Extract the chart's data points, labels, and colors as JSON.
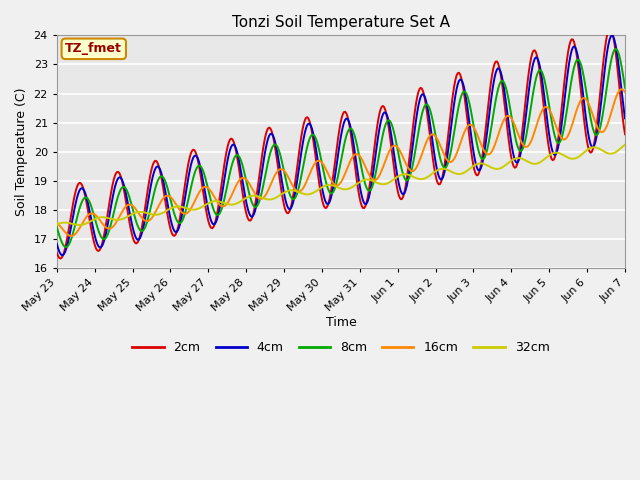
{
  "title": "Tonzi Soil Temperature Set A",
  "xlabel": "Time",
  "ylabel": "Soil Temperature (C)",
  "ylim": [
    16.0,
    24.0
  ],
  "yticks": [
    16.0,
    17.0,
    18.0,
    19.0,
    20.0,
    21.0,
    22.0,
    23.0,
    24.0
  ],
  "xtick_labels": [
    "May 23",
    "May 24",
    "May 25",
    "May 26",
    "May 27",
    "May 28",
    "May 29",
    "May 30",
    "May 31",
    "Jun 1",
    "Jun 2",
    "Jun 3",
    "Jun 4",
    "Jun 5",
    "Jun 6",
    "Jun 7"
  ],
  "bg_color": "#e8e8e8",
  "fig_color": "#f0f0f0",
  "annotation_text": "TZ_fmet",
  "annotation_bg": "#ffffcc",
  "annotation_edge": "#cc8800",
  "legend_entries": [
    "2cm",
    "4cm",
    "8cm",
    "16cm",
    "32cm"
  ],
  "line_colors": [
    "#dd0000",
    "#0000cc",
    "#00aa00",
    "#ff8800",
    "#cccc00"
  ],
  "line_width": 1.4,
  "n_points": 480,
  "days": 15
}
